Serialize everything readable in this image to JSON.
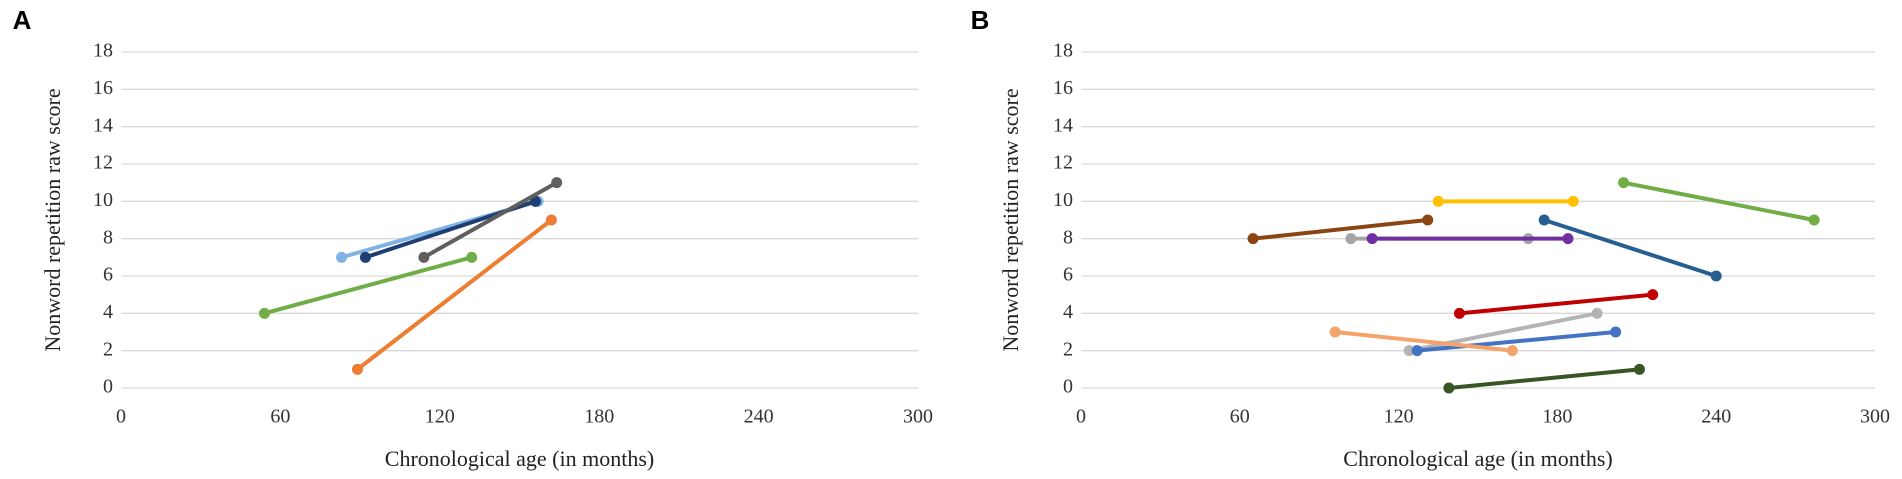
{
  "chart_data": [
    {
      "type": "line",
      "panel_label": "A",
      "ylabel": "Nonword repetition raw score",
      "xlabel": "Chronological age (in months)",
      "xlim": [
        0,
        300
      ],
      "xticks": [
        0,
        60,
        120,
        180,
        240,
        300
      ],
      "ylim": [
        0,
        18
      ],
      "yticks": [
        0,
        2,
        4,
        6,
        8,
        10,
        12,
        14,
        16,
        18
      ],
      "grid": true,
      "series": [
        {
          "color": "#7fb2e5",
          "x": [
            83,
            157
          ],
          "values": [
            7,
            10
          ]
        },
        {
          "color": "#1f3e73",
          "x": [
            92,
            156
          ],
          "values": [
            7,
            10
          ]
        },
        {
          "color": "#5f5f5f",
          "x": [
            114,
            164
          ],
          "values": [
            7,
            11
          ]
        },
        {
          "color": "#70ad47",
          "x": [
            54,
            132
          ],
          "values": [
            4,
            7
          ]
        },
        {
          "color": "#ed7d31",
          "x": [
            89,
            162
          ],
          "values": [
            1,
            9
          ]
        }
      ]
    },
    {
      "type": "line",
      "panel_label": "B",
      "ylabel": "Nonword repetition raw score",
      "xlabel": "Chronological age (in months)",
      "xlim": [
        0,
        300
      ],
      "xticks": [
        0,
        60,
        120,
        180,
        240,
        300
      ],
      "ylim": [
        0,
        18
      ],
      "yticks": [
        0,
        2,
        4,
        6,
        8,
        10,
        12,
        14,
        16,
        18
      ],
      "grid": true,
      "series": [
        {
          "color": "#8b4513",
          "x": [
            65,
            131
          ],
          "values": [
            8,
            9
          ]
        },
        {
          "color": "#ffc000",
          "x": [
            135,
            186
          ],
          "values": [
            10,
            10
          ]
        },
        {
          "color": "#a5a5a5",
          "x": [
            102,
            169
          ],
          "values": [
            8,
            8
          ]
        },
        {
          "color": "#7030a0",
          "x": [
            110,
            184
          ],
          "values": [
            8,
            8
          ]
        },
        {
          "color": "#255e91",
          "x": [
            175,
            240
          ],
          "values": [
            9,
            6
          ]
        },
        {
          "color": "#70ad47",
          "x": [
            205,
            277
          ],
          "values": [
            11,
            9
          ]
        },
        {
          "color": "#c00000",
          "x": [
            143,
            216
          ],
          "values": [
            4,
            5
          ]
        },
        {
          "color": "#b4b4b4",
          "x": [
            124,
            195
          ],
          "values": [
            2,
            4
          ]
        },
        {
          "color": "#4472c4",
          "x": [
            127,
            202
          ],
          "values": [
            2,
            3
          ]
        },
        {
          "color": "#f4a36b",
          "x": [
            96,
            163
          ],
          "values": [
            3,
            2
          ]
        },
        {
          "color": "#375623",
          "x": [
            139,
            211
          ],
          "values": [
            0,
            1
          ]
        }
      ]
    }
  ]
}
